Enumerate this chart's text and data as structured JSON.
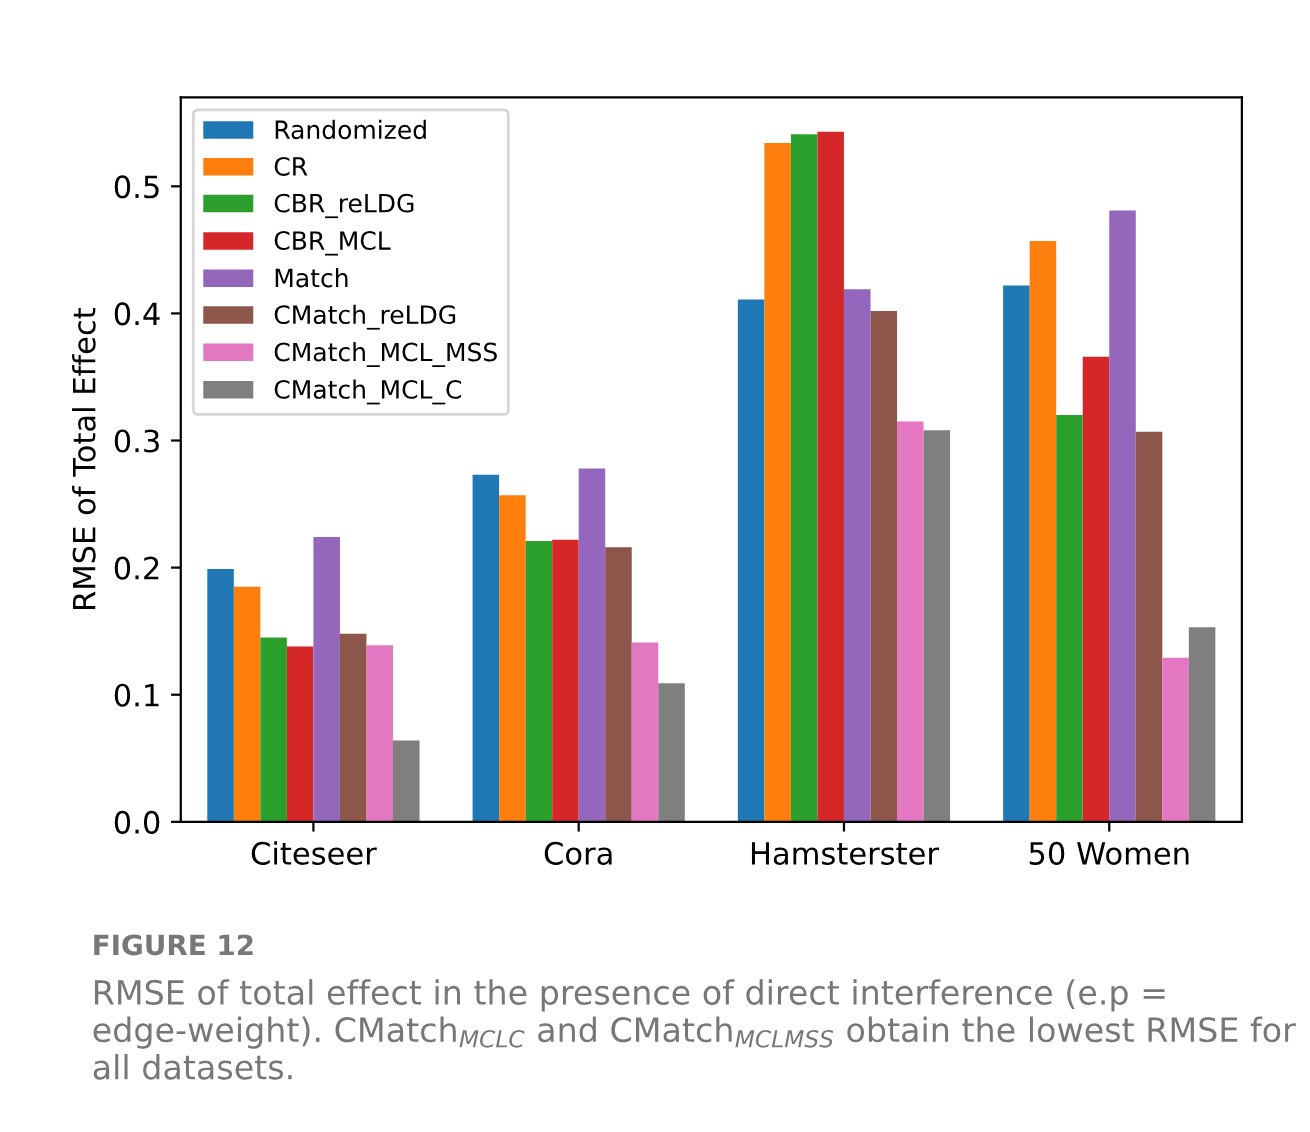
{
  "chart_data": {
    "type": "bar",
    "ylabel": "RMSE of Total Effect",
    "categories": [
      "Citeseer",
      "Cora",
      "Hamsterster",
      "50 Women"
    ],
    "series": [
      {
        "name": "Randomized",
        "color": "#1f77b4",
        "values": [
          0.199,
          0.273,
          0.411,
          0.422
        ]
      },
      {
        "name": "CR",
        "color": "#ff7f0e",
        "values": [
          0.185,
          0.257,
          0.534,
          0.457
        ]
      },
      {
        "name": "CBR_reLDG",
        "color": "#2ca02c",
        "values": [
          0.145,
          0.221,
          0.541,
          0.32
        ]
      },
      {
        "name": "CBR_MCL",
        "color": "#d62728",
        "values": [
          0.138,
          0.222,
          0.543,
          0.366
        ]
      },
      {
        "name": "Match",
        "color": "#9467bd",
        "values": [
          0.224,
          0.278,
          0.419,
          0.481
        ]
      },
      {
        "name": "CMatch_reLDG",
        "color": "#8c564b",
        "values": [
          0.148,
          0.216,
          0.402,
          0.307
        ]
      },
      {
        "name": "CMatch_MCL_MSS",
        "color": "#e377c2",
        "values": [
          0.139,
          0.141,
          0.315,
          0.129
        ]
      },
      {
        "name": "CMatch_MCL_C",
        "color": "#7f7f7f",
        "values": [
          0.064,
          0.109,
          0.308,
          0.153
        ]
      }
    ],
    "ylim": [
      0,
      0.57
    ],
    "yticks": [
      {
        "value": 0,
        "label": "0.0"
      },
      0.1,
      0.2,
      0.3,
      0.4,
      0.5
    ],
    "legend": "top left",
    "annotations": [
      "FIGURE 12",
      "RMSE of total effect in the presence of direct interference (e.p = edge-weight). CMatch$_{MCLC}$ and CMatch$_{MCLMSS}$ obtain the lowest RMSE for all datasets."
    ]
  }
}
